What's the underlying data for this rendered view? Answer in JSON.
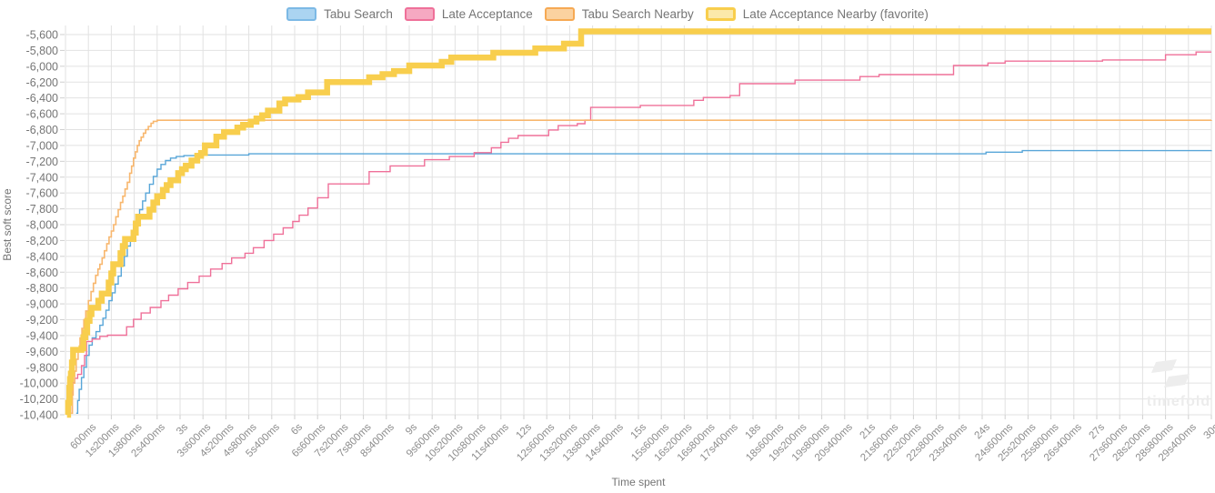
{
  "watermark": {
    "text": "timefold"
  },
  "chart_data": {
    "type": "line",
    "step_interpolation": true,
    "title": "",
    "xlabel": "Time spent",
    "ylabel": "Best soft score",
    "xlim_seconds": [
      0,
      30
    ],
    "ylim": [
      -10400,
      -5600
    ],
    "y_tick_step": 200,
    "x_tick_step_ms": 600,
    "grid": true,
    "legend_position": "top-center",
    "colors": {
      "grid": "#e2e2e2",
      "tick": "#cfcfcf",
      "y_label_text": "#757575",
      "x_label_text": "#8c8c8c",
      "axis_title_text": "#757575",
      "watermark": "#ededed"
    },
    "y_tick_labels": [
      "-5,600",
      "-5,800",
      "-6,000",
      "-6,200",
      "-6,400",
      "-6,600",
      "-6,800",
      "-7,000",
      "-7,200",
      "-7,400",
      "-7,600",
      "-7,800",
      "-8,000",
      "-8,200",
      "-8,400",
      "-8,600",
      "-8,800",
      "-9,000",
      "-9,200",
      "-9,400",
      "-9,600",
      "-9,800",
      "-10,000",
      "-10,200",
      "-10,400"
    ],
    "x_tick_labels": [
      "600ms",
      "1s200ms",
      "1s800ms",
      "2s400ms",
      "3s",
      "3s600ms",
      "4s200ms",
      "4s800ms",
      "5s400ms",
      "6s",
      "6s600ms",
      "7s200ms",
      "7s800ms",
      "8s400ms",
      "9s",
      "9s600ms",
      "10s200ms",
      "10s800ms",
      "11s400ms",
      "12s",
      "12s600ms",
      "13s200ms",
      "13s800ms",
      "14s400ms",
      "15s",
      "15s600ms",
      "16s200ms",
      "16s800ms",
      "17s400ms",
      "18s",
      "18s600ms",
      "19s200ms",
      "19s800ms",
      "20s400ms",
      "21s",
      "21s600ms",
      "22s200ms",
      "22s800ms",
      "23s400ms",
      "24s",
      "24s600ms",
      "25s200ms",
      "25s800ms",
      "26s400ms",
      "27s",
      "27s600ms",
      "28s200ms",
      "28s800ms",
      "29s400ms",
      "30s"
    ],
    "series": [
      {
        "name": "Tabu Search",
        "color": "#58a6d8",
        "legend_fill": "#abd4f1",
        "legend_border": "#7cb9e5",
        "legend_border_width": 2,
        "line_width": 1.4,
        "final_score": -7062,
        "points": [
          [
            0.28,
            -10380
          ],
          [
            0.32,
            -10220
          ],
          [
            0.36,
            -10080
          ],
          [
            0.42,
            -9930
          ],
          [
            0.48,
            -9800
          ],
          [
            0.55,
            -9650
          ],
          [
            0.62,
            -9520
          ],
          [
            0.7,
            -9430
          ],
          [
            0.8,
            -9350
          ],
          [
            0.9,
            -9270
          ],
          [
            0.98,
            -9180
          ],
          [
            1.06,
            -9080
          ],
          [
            1.14,
            -8960
          ],
          [
            1.22,
            -8860
          ],
          [
            1.3,
            -8750
          ],
          [
            1.38,
            -8650
          ],
          [
            1.46,
            -8520
          ],
          [
            1.54,
            -8400
          ],
          [
            1.62,
            -8270
          ],
          [
            1.7,
            -8160
          ],
          [
            1.78,
            -8040
          ],
          [
            1.86,
            -7925
          ],
          [
            1.94,
            -7810
          ],
          [
            2.02,
            -7700
          ],
          [
            2.1,
            -7600
          ],
          [
            2.2,
            -7490
          ],
          [
            2.3,
            -7390
          ],
          [
            2.4,
            -7300
          ],
          [
            2.5,
            -7240
          ],
          [
            2.62,
            -7190
          ],
          [
            2.75,
            -7160
          ],
          [
            2.9,
            -7140
          ],
          [
            3.1,
            -7128
          ],
          [
            3.6,
            -7120
          ],
          [
            4.8,
            -7105
          ],
          [
            24.1,
            -7085
          ],
          [
            25.05,
            -7065
          ],
          [
            30,
            -7062
          ]
        ]
      },
      {
        "name": "Late Acceptance",
        "color": "#ef7099",
        "legend_fill": "#f6a9c2",
        "legend_border": "#ef7099",
        "legend_border_width": 2,
        "line_width": 1.4,
        "final_score": -5820,
        "points": [
          [
            0.1,
            -10380
          ],
          [
            0.13,
            -10160
          ],
          [
            0.17,
            -9995
          ],
          [
            0.24,
            -9940
          ],
          [
            0.32,
            -9890
          ],
          [
            0.42,
            -9780
          ],
          [
            0.5,
            -9650
          ],
          [
            0.55,
            -9475
          ],
          [
            0.7,
            -9445
          ],
          [
            0.9,
            -9410
          ],
          [
            1.1,
            -9395
          ],
          [
            1.6,
            -9290
          ],
          [
            1.78,
            -9195
          ],
          [
            1.98,
            -9115
          ],
          [
            2.22,
            -9045
          ],
          [
            2.5,
            -8960
          ],
          [
            2.7,
            -8890
          ],
          [
            2.95,
            -8810
          ],
          [
            3.2,
            -8730
          ],
          [
            3.5,
            -8650
          ],
          [
            3.8,
            -8560
          ],
          [
            4.1,
            -8490
          ],
          [
            4.35,
            -8420
          ],
          [
            4.7,
            -8360
          ],
          [
            4.92,
            -8290
          ],
          [
            5.2,
            -8200
          ],
          [
            5.45,
            -8120
          ],
          [
            5.7,
            -8040
          ],
          [
            5.95,
            -7960
          ],
          [
            6.12,
            -7880
          ],
          [
            6.35,
            -7790
          ],
          [
            6.6,
            -7660
          ],
          [
            6.88,
            -7485
          ],
          [
            7.95,
            -7330
          ],
          [
            8.5,
            -7258
          ],
          [
            9.4,
            -7180
          ],
          [
            10.05,
            -7140
          ],
          [
            10.7,
            -7090
          ],
          [
            11.15,
            -7030
          ],
          [
            11.4,
            -6960
          ],
          [
            11.6,
            -6910
          ],
          [
            11.85,
            -6875
          ],
          [
            12.65,
            -6805
          ],
          [
            12.9,
            -6750
          ],
          [
            13.4,
            -6725
          ],
          [
            13.6,
            -6680
          ],
          [
            13.75,
            -6520
          ],
          [
            15.05,
            -6495
          ],
          [
            16.45,
            -6430
          ],
          [
            16.7,
            -6395
          ],
          [
            17.4,
            -6370
          ],
          [
            17.65,
            -6220
          ],
          [
            19.1,
            -6175
          ],
          [
            20.8,
            -6130
          ],
          [
            21.3,
            -6105
          ],
          [
            23.25,
            -5990
          ],
          [
            24.15,
            -5960
          ],
          [
            24.6,
            -5935
          ],
          [
            27.15,
            -5920
          ],
          [
            28.8,
            -5855
          ],
          [
            29.6,
            -5820
          ],
          [
            30,
            -5820
          ]
        ]
      },
      {
        "name": "Tabu Search Nearby",
        "color": "#f8b76e",
        "legend_fill": "#fbd2a0",
        "legend_border": "#f6a953",
        "legend_border_width": 2,
        "line_width": 1.6,
        "final_score": -6680,
        "points": [
          [
            0.15,
            -10380
          ],
          [
            0.18,
            -10150
          ],
          [
            0.2,
            -10000
          ],
          [
            0.24,
            -9850
          ],
          [
            0.28,
            -9700
          ],
          [
            0.33,
            -9560
          ],
          [
            0.38,
            -9430
          ],
          [
            0.43,
            -9310
          ],
          [
            0.48,
            -9200
          ],
          [
            0.53,
            -9090
          ],
          [
            0.6,
            -8960
          ],
          [
            0.67,
            -8845
          ],
          [
            0.73,
            -8740
          ],
          [
            0.79,
            -8640
          ],
          [
            0.85,
            -8560
          ],
          [
            0.9,
            -8500
          ],
          [
            0.96,
            -8420
          ],
          [
            1.02,
            -8330
          ],
          [
            1.08,
            -8240
          ],
          [
            1.14,
            -8155
          ],
          [
            1.2,
            -8080
          ],
          [
            1.26,
            -8000
          ],
          [
            1.32,
            -7900
          ],
          [
            1.38,
            -7810
          ],
          [
            1.44,
            -7720
          ],
          [
            1.5,
            -7640
          ],
          [
            1.56,
            -7550
          ],
          [
            1.62,
            -7465
          ],
          [
            1.68,
            -7350
          ],
          [
            1.73,
            -7260
          ],
          [
            1.78,
            -7160
          ],
          [
            1.83,
            -7080
          ],
          [
            1.88,
            -7000
          ],
          [
            1.93,
            -6940
          ],
          [
            1.98,
            -6895
          ],
          [
            2.04,
            -6845
          ],
          [
            2.1,
            -6800
          ],
          [
            2.17,
            -6760
          ],
          [
            2.24,
            -6720
          ],
          [
            2.3,
            -6695
          ],
          [
            2.4,
            -6682
          ],
          [
            30,
            -6680
          ]
        ]
      },
      {
        "name": "Late Acceptance Nearby (favorite)",
        "color": "#f8ce4d",
        "legend_fill": "#fbe9aa",
        "legend_border": "#f8ce4d",
        "legend_border_width": 3.5,
        "line_width": 6.5,
        "final_score": -5560,
        "points": [
          [
            0.04,
            -10400
          ],
          [
            0.07,
            -10250
          ],
          [
            0.1,
            -10060
          ],
          [
            0.12,
            -9950
          ],
          [
            0.14,
            -9880
          ],
          [
            0.17,
            -9740
          ],
          [
            0.2,
            -9580
          ],
          [
            0.42,
            -9560
          ],
          [
            0.47,
            -9420
          ],
          [
            0.52,
            -9360
          ],
          [
            0.57,
            -9215
          ],
          [
            0.63,
            -9130
          ],
          [
            0.68,
            -9050
          ],
          [
            0.86,
            -8960
          ],
          [
            0.95,
            -8870
          ],
          [
            1.13,
            -8730
          ],
          [
            1.2,
            -8615
          ],
          [
            1.25,
            -8500
          ],
          [
            1.44,
            -8360
          ],
          [
            1.5,
            -8270
          ],
          [
            1.56,
            -8180
          ],
          [
            1.78,
            -8100
          ],
          [
            1.84,
            -7985
          ],
          [
            1.9,
            -7900
          ],
          [
            2.2,
            -7810
          ],
          [
            2.3,
            -7720
          ],
          [
            2.4,
            -7640
          ],
          [
            2.55,
            -7560
          ],
          [
            2.65,
            -7500
          ],
          [
            2.75,
            -7440
          ],
          [
            2.95,
            -7350
          ],
          [
            3.05,
            -7300
          ],
          [
            3.15,
            -7255
          ],
          [
            3.3,
            -7190
          ],
          [
            3.45,
            -7130
          ],
          [
            3.55,
            -7095
          ],
          [
            3.65,
            -7000
          ],
          [
            3.95,
            -6890
          ],
          [
            4.15,
            -6830
          ],
          [
            4.5,
            -6775
          ],
          [
            4.65,
            -6740
          ],
          [
            4.85,
            -6700
          ],
          [
            5.0,
            -6660
          ],
          [
            5.15,
            -6620
          ],
          [
            5.3,
            -6560
          ],
          [
            5.6,
            -6470
          ],
          [
            5.75,
            -6420
          ],
          [
            6.1,
            -6390
          ],
          [
            6.35,
            -6330
          ],
          [
            6.85,
            -6200
          ],
          [
            7.95,
            -6140
          ],
          [
            8.3,
            -6100
          ],
          [
            8.6,
            -6060
          ],
          [
            9.0,
            -5990
          ],
          [
            9.85,
            -5945
          ],
          [
            10.1,
            -5890
          ],
          [
            11.2,
            -5830
          ],
          [
            12.3,
            -5775
          ],
          [
            13.05,
            -5715
          ],
          [
            13.5,
            -5560
          ],
          [
            30,
            -5560
          ]
        ]
      }
    ]
  }
}
